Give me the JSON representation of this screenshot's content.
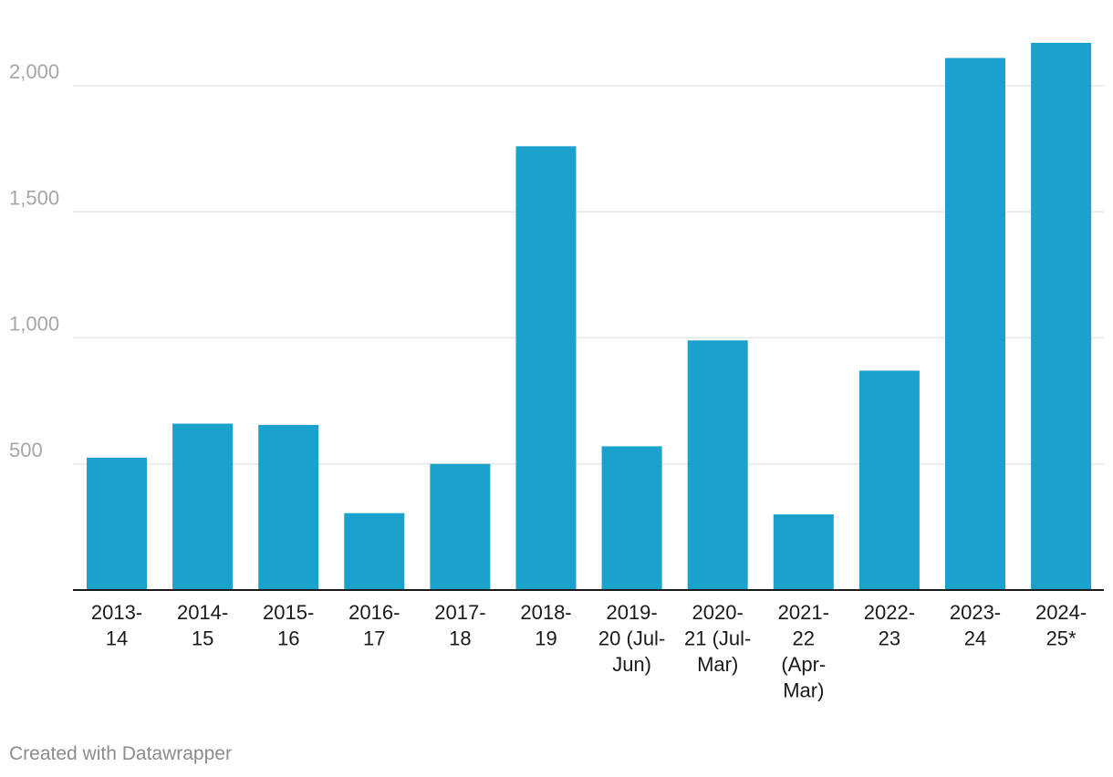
{
  "chart_data": {
    "type": "bar",
    "categories": [
      [
        "2013-",
        "14"
      ],
      [
        "2014-",
        "15"
      ],
      [
        "2015-",
        "16"
      ],
      [
        "2016-",
        "17"
      ],
      [
        "2017-",
        "18"
      ],
      [
        "2018-",
        "19"
      ],
      [
        "2019-",
        "20 (Jul-",
        "Jun)"
      ],
      [
        "2020-",
        "21 (Jul-",
        "Mar)"
      ],
      [
        "2021-",
        "22",
        "(Apr-",
        "Mar)"
      ],
      [
        "2022-",
        "23"
      ],
      [
        "2023-",
        "24"
      ],
      [
        "2024-",
        "25*"
      ]
    ],
    "values": [
      525,
      660,
      655,
      305,
      500,
      1760,
      570,
      990,
      300,
      870,
      2110,
      2170
    ],
    "yticks": [
      500,
      1000,
      1500,
      2000
    ],
    "ytick_labels": [
      "500",
      "1,000",
      "1,500",
      "2,000"
    ],
    "ylim": [
      0,
      2200
    ],
    "grid": true,
    "colors": {
      "bar": "#1aa1cc"
    }
  },
  "footer": {
    "credit": "Created with Datawrapper"
  }
}
